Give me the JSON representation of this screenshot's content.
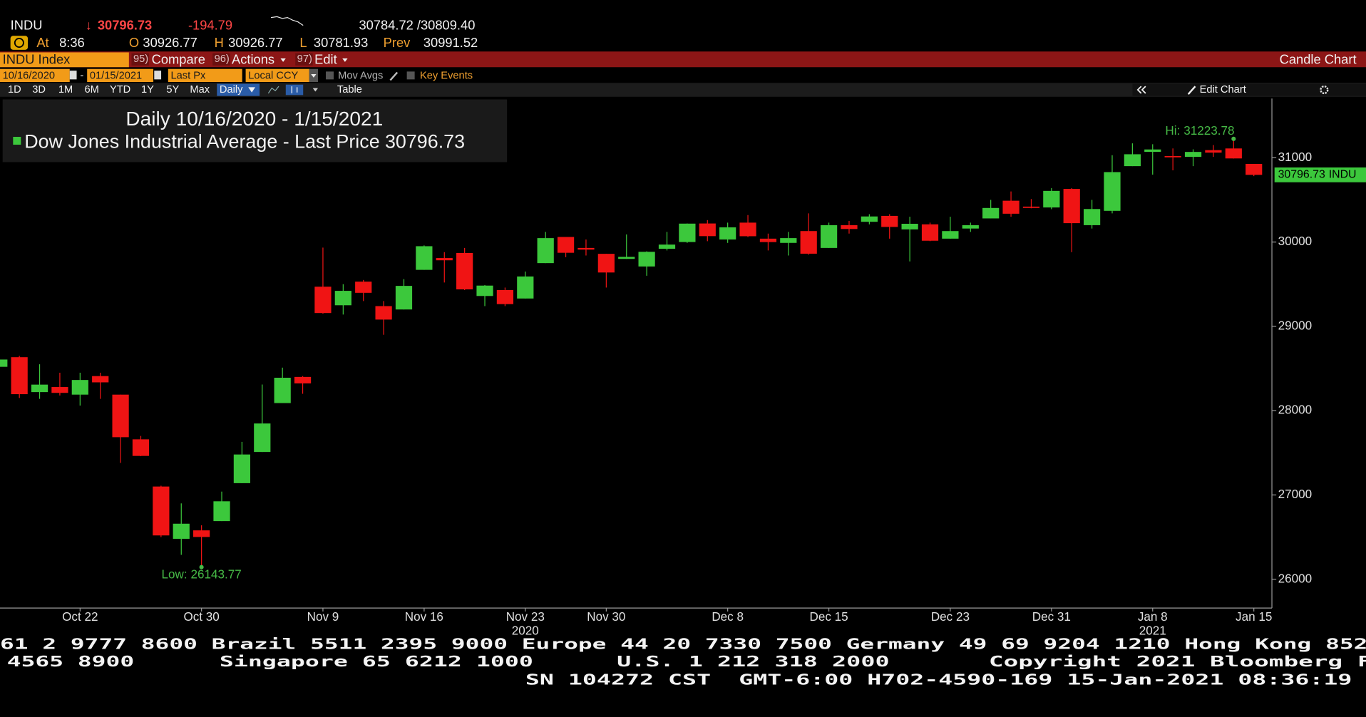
{
  "header": {
    "ticker": "INDU",
    "last_arrow": "↓",
    "last": "30796.73",
    "change": "-194.79",
    "bid_ask": "30784.72 /30809.40",
    "at_label": "At",
    "time": "8:36",
    "open_label": "O",
    "open": "30926.77",
    "high_label": "H",
    "high": "30926.77",
    "low_label": "L",
    "low": "30781.93",
    "prev_label": "Prev",
    "prev": "30991.52"
  },
  "toolbar": {
    "security": "INDU Index",
    "buttons": [
      {
        "num": "95)",
        "label": "Compare"
      },
      {
        "num": "96)",
        "label": "Actions"
      },
      {
        "num": "97)",
        "label": "Edit"
      }
    ],
    "chart_kind": "Candle Chart"
  },
  "settings": {
    "start_date": "10/16/2020",
    "date_separator": "-",
    "end_date": "01/15/2021",
    "field": "Last Px",
    "currency": "Local CCY",
    "mov_avgs": "Mov Avgs",
    "key_events": "Key Events"
  },
  "periods": {
    "items": [
      "1D",
      "3D",
      "1M",
      "6M",
      "YTD",
      "1Y",
      "5Y",
      "Max"
    ],
    "frequency": "Daily",
    "table": "Table",
    "edit_chart": "Edit Chart"
  },
  "footer": {
    "line1": "61 2 9777 8600 Brazil 5511 2395 9000 Europe 44 20 7330 7500 Germany 49 69 9204 1210 Hong Kong 852",
    "line2": [
      "4565 8900",
      "Singapore 65 6212 1000",
      "U.S. 1 212 318 2000",
      "Copyright 2021 Bloomberg F"
    ],
    "line3": [
      "SN 104272 CST",
      "GMT-6:00 H702-4590-169 15-Jan-2021 08:36:19"
    ]
  },
  "chart_data": {
    "type": "candlestick",
    "title": "Daily 10/16/2020 - 1/15/2021",
    "categories": [
      null,
      null,
      null,
      null,
      "Oct 22",
      null,
      null,
      null,
      null,
      null,
      "Oct 30",
      null,
      null,
      null,
      null,
      null,
      "Nov 9",
      null,
      null,
      null,
      null,
      "Nov 16",
      null,
      null,
      null,
      null,
      "Nov 23",
      null,
      null,
      null,
      "Nov 30",
      null,
      null,
      null,
      null,
      null,
      "Dec 8",
      null,
      null,
      null,
      null,
      "Dec 15",
      null,
      null,
      null,
      null,
      null,
      "Dec 23",
      null,
      null,
      null,
      null,
      "Dec 31",
      null,
      null,
      null,
      null,
      "Jan 8",
      null,
      null,
      null,
      null,
      "Jan 15"
    ],
    "category_years": [
      null,
      null,
      null,
      null,
      null,
      null,
      null,
      null,
      null,
      null,
      null,
      null,
      null,
      null,
      null,
      null,
      null,
      null,
      null,
      null,
      null,
      null,
      null,
      null,
      null,
      null,
      "2020",
      null,
      null,
      null,
      null,
      null,
      null,
      null,
      null,
      null,
      null,
      null,
      null,
      null,
      null,
      null,
      null,
      null,
      null,
      null,
      null,
      null,
      null,
      null,
      null,
      null,
      null,
      null,
      null,
      null,
      null,
      "2021",
      null,
      null,
      null,
      null,
      null
    ],
    "series": [
      {
        "name": "Dow Jones Industrial Average - Last Price",
        "color": "#3cc83c",
        "up_color": "#3cc83c",
        "down_color": "#f01414",
        "last_value": 30796.73,
        "open": [
          28520,
          28634,
          28220,
          28280,
          28190,
          28410,
          28190,
          27660,
          27100,
          26480,
          26580,
          26690,
          27140,
          27510,
          28090,
          28400,
          29470,
          29250,
          29530,
          29240,
          29200,
          29670,
          29810,
          29870,
          29360,
          29430,
          29330,
          29750,
          30060,
          29930,
          29860,
          29800,
          29710,
          29920,
          30000,
          30220,
          30030,
          30230,
          30040,
          29990,
          30130,
          29930,
          30200,
          30240,
          30310,
          30150,
          30210,
          30040,
          30160,
          30280,
          30490,
          30420,
          30410,
          30630,
          30200,
          30370,
          30900,
          31070,
          31020,
          31010,
          31090,
          31110,
          30926.77
        ],
        "high": [
          28830,
          28650,
          28550,
          28450,
          28450,
          28450,
          28190,
          27700,
          27110,
          26900,
          26640,
          27040,
          27630,
          28310,
          28510,
          28410,
          29934,
          29500,
          29550,
          29300,
          29560,
          29960,
          29880,
          29930,
          29490,
          29460,
          29650,
          30120,
          30060,
          30030,
          29860,
          30090,
          29890,
          30120,
          30220,
          30260,
          30230,
          30320,
          30100,
          30120,
          30340,
          30230,
          30250,
          30330,
          30330,
          30300,
          30230,
          30300,
          30230,
          30500,
          30600,
          30510,
          30640,
          30640,
          30500,
          31030,
          31170,
          31160,
          31110,
          31100,
          31150,
          31223.78,
          30926.77
        ],
        "low": [
          28470,
          28150,
          28140,
          28180,
          28060,
          28140,
          27380,
          27460,
          26500,
          26290,
          26143.77,
          26690,
          27140,
          27510,
          28090,
          28200,
          29150,
          29140,
          29300,
          28900,
          29200,
          29670,
          29520,
          29430,
          29240,
          29240,
          29330,
          29750,
          29820,
          29840,
          29460,
          29800,
          29600,
          29900,
          29990,
          30010,
          29990,
          30060,
          29900,
          29840,
          29850,
          29930,
          30100,
          30210,
          30040,
          29770,
          30010,
          30040,
          30120,
          30280,
          30300,
          30400,
          30390,
          29880,
          30160,
          30340,
          30900,
          30800,
          30850,
          30900,
          31010,
          30990,
          30781.93
        ],
        "close": [
          28606.31,
          28195.42,
          28308.79,
          28210.82,
          28363.66,
          28335.57,
          27685.38,
          27463.19,
          26519.95,
          26659.11,
          26501.6,
          26925.05,
          27480.03,
          27847.66,
          28390.18,
          28323.4,
          29157.97,
          29420.92,
          29397.63,
          29080.17,
          29479.81,
          29950.44,
          29783.35,
          29438.42,
          29483.23,
          29263.48,
          29591.27,
          30046.24,
          29872.47,
          29910.37,
          29638.64,
          29823.92,
          29883.79,
          29969.52,
          30218.26,
          30069.79,
          30173.88,
          30068.81,
          29999.26,
          30046.37,
          29861.55,
          30199.87,
          30154.54,
          30303.37,
          30179.05,
          30216.45,
          30015.51,
          30129.83,
          30199.31,
          30403.97,
          30335.67,
          30409.56,
          30606.48,
          30223.89,
          30391.6,
          30829.4,
          31041.13,
          31097.97,
          31008.69,
          31068.69,
          31060.47,
          30991.52,
          30796.73
        ]
      }
    ],
    "ylim": [
      25659,
      31702
    ],
    "yticks": [
      26000,
      27000,
      28000,
      29000,
      30000,
      31000
    ],
    "grid": false,
    "last_tag": {
      "value": 30796.73,
      "label": "INDU"
    },
    "annotations": [
      {
        "label": "Hi:",
        "value": 31223.78,
        "color": "#46b946"
      },
      {
        "label": "Low:",
        "value": 26143.77,
        "color": "#46b946"
      }
    ]
  }
}
